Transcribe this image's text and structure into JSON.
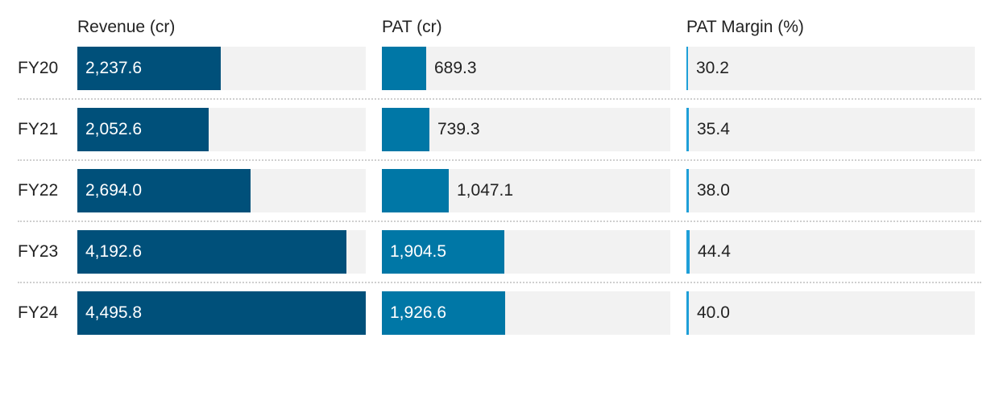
{
  "chart_data": {
    "type": "bar",
    "categories": [
      "FY20",
      "FY21",
      "FY22",
      "FY23",
      "FY24"
    ],
    "series": [
      {
        "name": "Revenue (cr)",
        "values": [
          2237.6,
          2052.6,
          2694.0,
          4192.6,
          4495.8
        ],
        "labels": [
          "2,237.6",
          "2,052.6",
          "2,694.0",
          "4,192.6",
          "4,495.8"
        ],
        "color": "#00507a",
        "max": 4495.8
      },
      {
        "name": "PAT (cr)",
        "values": [
          689.3,
          739.3,
          1047.1,
          1904.5,
          1926.6
        ],
        "labels": [
          "689.3",
          "739.3",
          "1,047.1",
          "1,904.5",
          "1,926.6"
        ],
        "color": "#0077a6",
        "max": 4495.8
      },
      {
        "name": "PAT Margin (%)",
        "values": [
          30.2,
          35.4,
          38.0,
          44.4,
          40.0
        ],
        "labels": [
          "30.2",
          "35.4",
          "38.0",
          "44.4",
          "40.0"
        ],
        "color": "#1e9fd8",
        "max": 4495.8
      }
    ],
    "track_color": "#f2f2f2"
  }
}
